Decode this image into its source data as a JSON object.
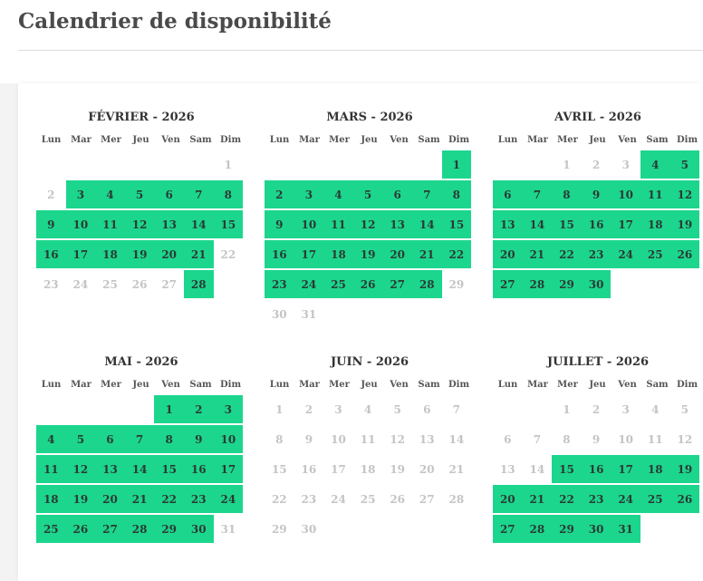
{
  "page": {
    "title": "Calendrier de disponibilité"
  },
  "weekdays": [
    "Lun",
    "Mar",
    "Mer",
    "Jeu",
    "Ven",
    "Sam",
    "Dim"
  ],
  "colors": {
    "available": "#1cd68e",
    "unavailable_text": "#c4c4c4"
  },
  "months": [
    {
      "title": "FÉVRIER - 2026",
      "offset": 6,
      "days": 28,
      "available": [
        3,
        4,
        5,
        6,
        7,
        8,
        9,
        10,
        11,
        12,
        13,
        14,
        15,
        16,
        17,
        18,
        19,
        20,
        21,
        28
      ]
    },
    {
      "title": "MARS - 2026",
      "offset": 6,
      "days": 31,
      "available": [
        1,
        2,
        3,
        4,
        5,
        6,
        7,
        8,
        9,
        10,
        11,
        12,
        13,
        14,
        15,
        16,
        17,
        18,
        19,
        20,
        21,
        22,
        23,
        24,
        25,
        26,
        27,
        28
      ]
    },
    {
      "title": "AVRIL - 2026",
      "offset": 2,
      "days": 30,
      "available": [
        4,
        5,
        6,
        7,
        8,
        9,
        10,
        11,
        12,
        13,
        14,
        15,
        16,
        17,
        18,
        19,
        20,
        21,
        22,
        23,
        24,
        25,
        26,
        27,
        28,
        29,
        30
      ]
    },
    {
      "title": "MAI - 2026",
      "offset": 4,
      "days": 31,
      "available": [
        1,
        2,
        3,
        4,
        5,
        6,
        7,
        8,
        9,
        10,
        11,
        12,
        13,
        14,
        15,
        16,
        17,
        18,
        19,
        20,
        21,
        22,
        23,
        24,
        25,
        26,
        27,
        28,
        29,
        30
      ]
    },
    {
      "title": "JUIN - 2026",
      "offset": 0,
      "days": 30,
      "available": []
    },
    {
      "title": "JUILLET - 2026",
      "offset": 2,
      "days": 31,
      "available": [
        15,
        16,
        17,
        18,
        19,
        20,
        21,
        22,
        23,
        24,
        25,
        26,
        27,
        28,
        29,
        30,
        31
      ]
    }
  ]
}
